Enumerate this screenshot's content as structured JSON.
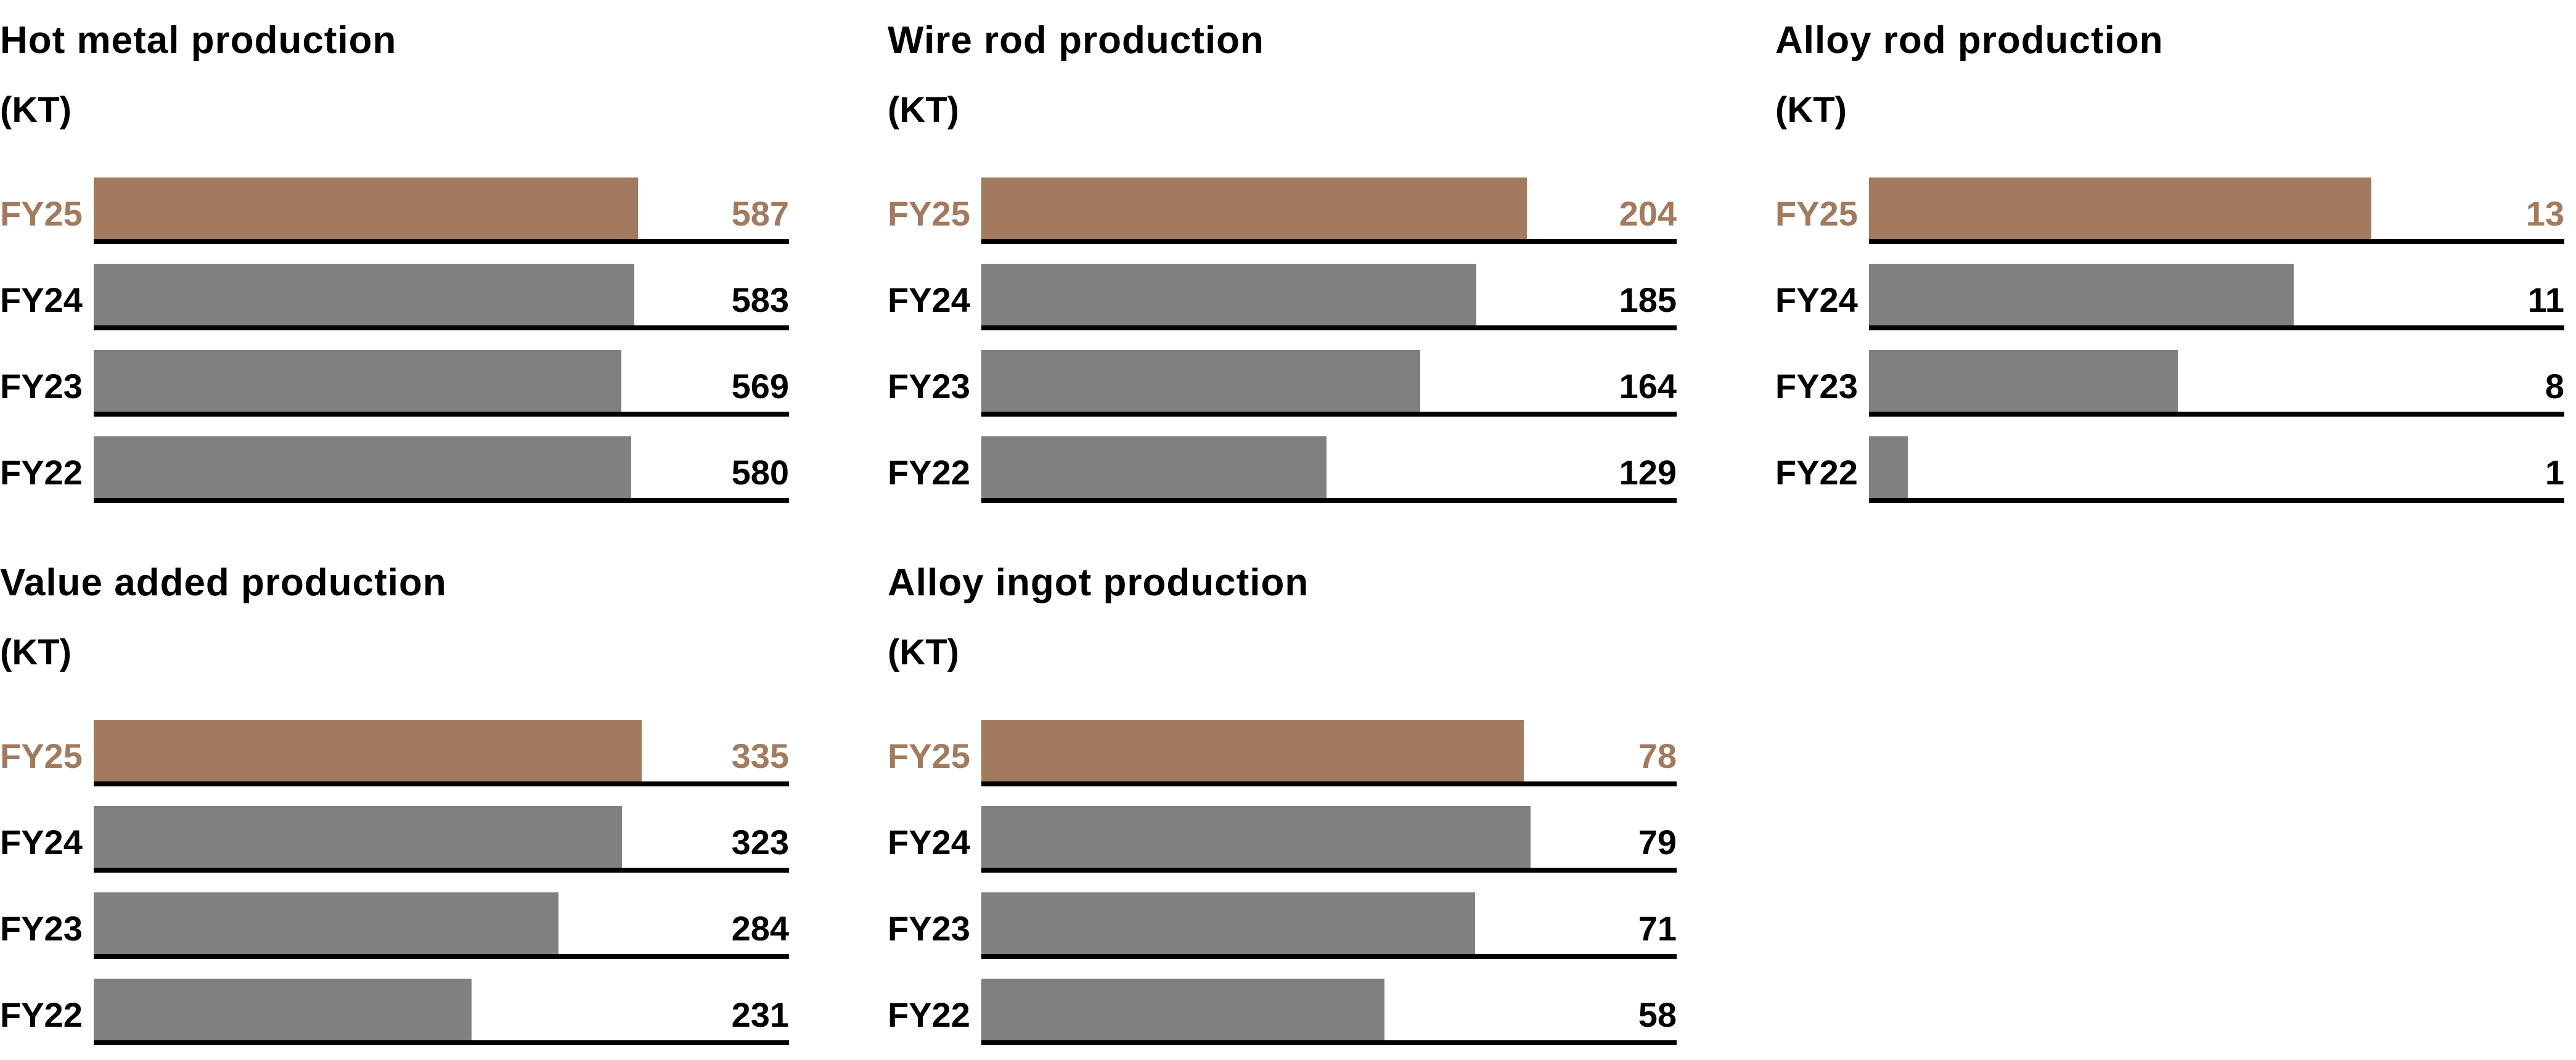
{
  "colors": {
    "highlight": "#a27a5e",
    "default": "#808083",
    "axis": "#000000"
  },
  "chart_data": [
    {
      "type": "bar",
      "orientation": "horizontal",
      "title": "Hot metal production",
      "unit": "(KT)",
      "categories": [
        "FY25",
        "FY24",
        "FY23",
        "FY22"
      ],
      "values": [
        587,
        583,
        569,
        580
      ],
      "labels": [
        "587",
        "583",
        "569",
        "580"
      ],
      "highlight": "FY25",
      "xlim": [
        0,
        750
      ]
    },
    {
      "type": "bar",
      "orientation": "horizontal",
      "title": "Wire rod production",
      "unit": "(KT)",
      "categories": [
        "FY25",
        "FY24",
        "FY23",
        "FY22"
      ],
      "values": [
        204,
        185,
        164,
        129
      ],
      "labels": [
        "204",
        "185",
        "164",
        "129"
      ],
      "highlight": "FY25",
      "xlim": [
        0,
        260
      ]
    },
    {
      "type": "bar",
      "orientation": "horizontal",
      "title": "Alloy rod production",
      "unit": "(KT)",
      "categories": [
        "FY25",
        "FY24",
        "FY23",
        "FY22"
      ],
      "values": [
        13,
        11,
        8,
        1
      ],
      "labels": [
        "13",
        "11",
        "8",
        "1"
      ],
      "highlight": "FY25",
      "xlim": [
        0,
        18
      ]
    },
    {
      "type": "bar",
      "orientation": "horizontal",
      "title": "Value added production",
      "unit": "(KT)",
      "categories": [
        "FY25",
        "FY24",
        "FY23",
        "FY22"
      ],
      "values": [
        335,
        323,
        284,
        231
      ],
      "labels": [
        "335",
        "323",
        "284",
        "231"
      ],
      "highlight": "FY25",
      "xlim": [
        0,
        425
      ]
    },
    {
      "type": "bar",
      "orientation": "horizontal",
      "title": "Alloy ingot production",
      "unit": "(KT)",
      "categories": [
        "FY25",
        "FY24",
        "FY23",
        "FY22"
      ],
      "values": [
        78,
        79,
        71,
        58
      ],
      "labels": [
        "78",
        "79",
        "71",
        "58"
      ],
      "highlight": "FY25",
      "xlim": [
        0,
        100
      ]
    }
  ]
}
